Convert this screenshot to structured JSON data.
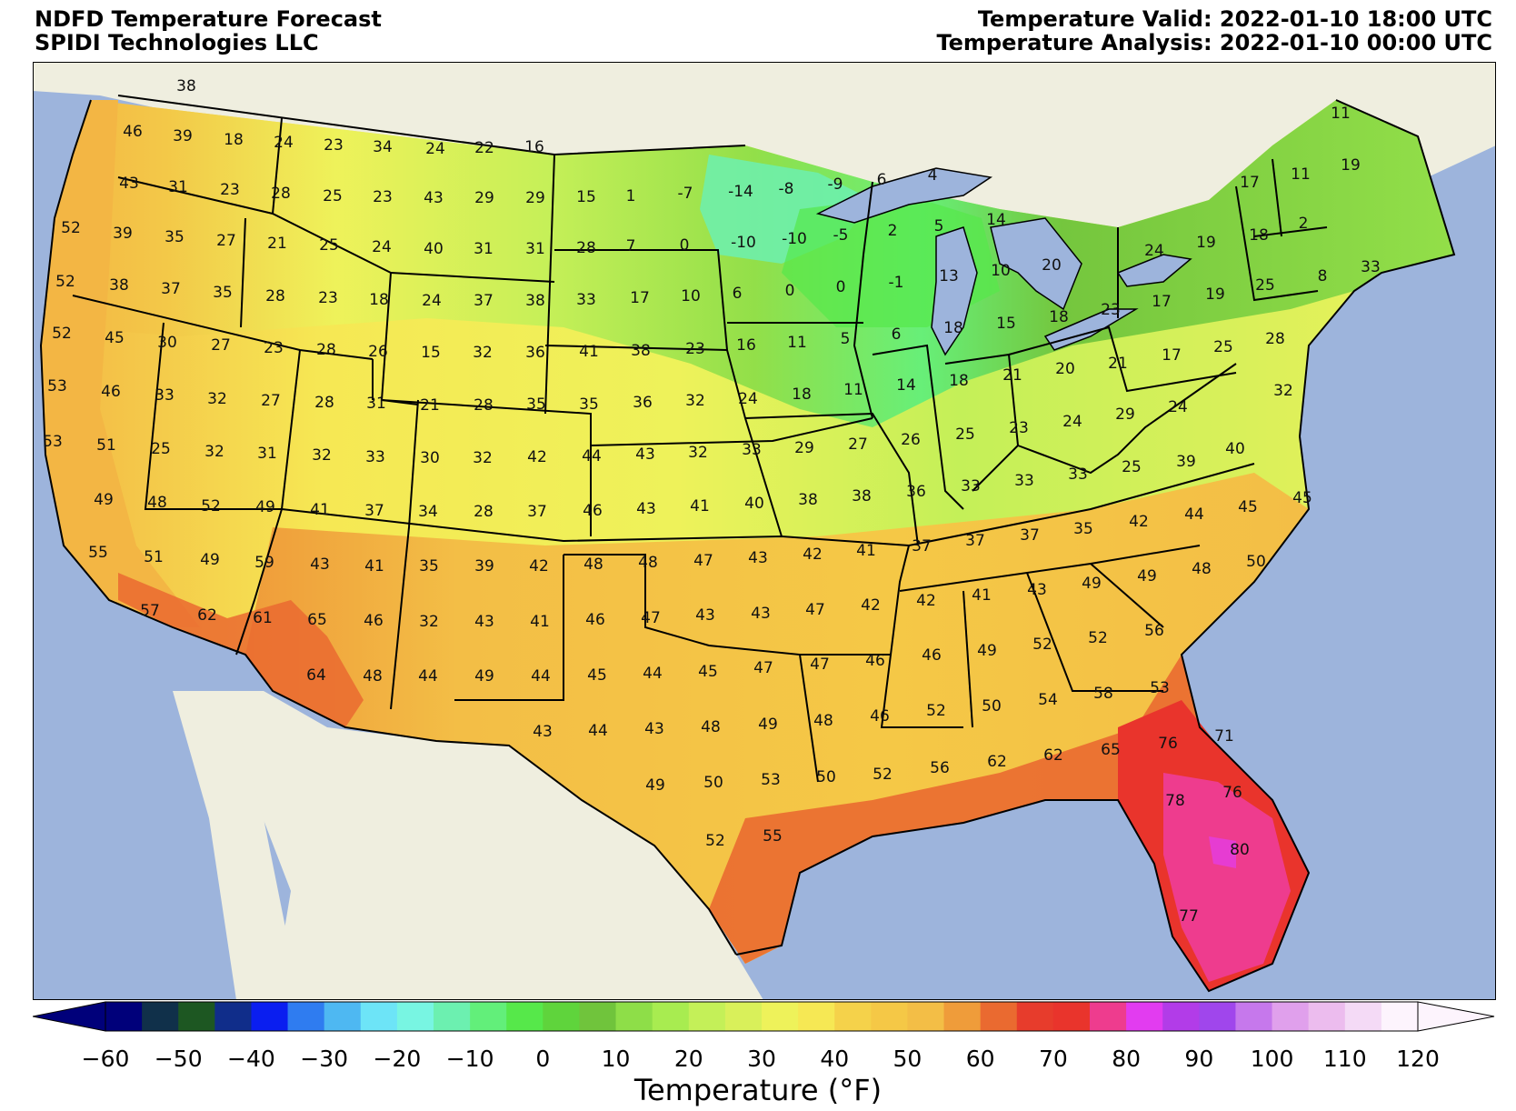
{
  "header": {
    "title_line1": "NDFD Temperature Forecast",
    "title_line2": "SPIDI Technologies LLC",
    "valid": "Temperature Valid: 2022-01-10 18:00 UTC",
    "analysis": "Temperature Analysis: 2022-01-10 00:00 UTC"
  },
  "colors": {
    "ocean": "#9db4dc",
    "land": "#efeedf",
    "border": "#000000"
  },
  "colorbar": {
    "label": "Temperature (°F)",
    "min": -60,
    "max": 120,
    "step": 5,
    "ticks": [
      "−60",
      "−50",
      "−40",
      "−30",
      "−20",
      "−10",
      "0",
      "10",
      "20",
      "30",
      "40",
      "50",
      "60",
      "70",
      "80",
      "90",
      "100",
      "110",
      "120"
    ],
    "colors": [
      "#00007a",
      "#10304a",
      "#1d5722",
      "#102d8a",
      "#0a1ef0",
      "#2f7cf0",
      "#4eb8f2",
      "#6de4f7",
      "#78f5e2",
      "#6cf0b0",
      "#62ef7a",
      "#56e84a",
      "#5fd43c",
      "#70c43c",
      "#8ede48",
      "#a8ec50",
      "#c4f058",
      "#d9f05a",
      "#eef25a",
      "#f6e854",
      "#f5d24a",
      "#f5c846",
      "#f3be46",
      "#ef9c3a",
      "#ea6a30",
      "#e73c2c",
      "#e9342c",
      "#ee3c8e",
      "#e23cf0",
      "#b23ce8",
      "#a046ec",
      "#c678ec",
      "#e0a0ec",
      "#ecbcee",
      "#f4daf6",
      "#fdf4fd"
    ]
  },
  "stations": [
    [
      "38",
      205,
      95
    ],
    [
      "46",
      146,
      145
    ],
    [
      "39",
      201,
      150
    ],
    [
      "18",
      257,
      154
    ],
    [
      "24",
      312,
      157
    ],
    [
      "23",
      367,
      160
    ],
    [
      "34",
      421,
      162
    ],
    [
      "24",
      479,
      164
    ],
    [
      "22",
      533,
      163
    ],
    [
      "16",
      588,
      162
    ],
    [
      "43",
      142,
      202
    ],
    [
      "31",
      196,
      206
    ],
    [
      "23",
      253,
      209
    ],
    [
      "28",
      309,
      213
    ],
    [
      "25",
      366,
      216
    ],
    [
      "23",
      421,
      217
    ],
    [
      "43",
      477,
      218
    ],
    [
      "29",
      533,
      218
    ],
    [
      "29",
      589,
      218
    ],
    [
      "15",
      645,
      217
    ],
    [
      "1",
      694,
      216
    ],
    [
      "-7",
      754,
      213
    ],
    [
      "-14",
      815,
      211
    ],
    [
      "-8",
      865,
      208
    ],
    [
      "-9",
      919,
      203
    ],
    [
      "6",
      970,
      198
    ],
    [
      "4",
      1026,
      193
    ],
    [
      "11",
      1475,
      125
    ],
    [
      "11",
      1431,
      192
    ],
    [
      "19",
      1486,
      182
    ],
    [
      "17",
      1375,
      201
    ],
    [
      "52",
      78,
      251
    ],
    [
      "39",
      135,
      257
    ],
    [
      "35",
      192,
      261
    ],
    [
      "27",
      249,
      265
    ],
    [
      "21",
      305,
      268
    ],
    [
      "25",
      362,
      270
    ],
    [
      "24",
      420,
      272
    ],
    [
      "40",
      477,
      274
    ],
    [
      "31",
      532,
      274
    ],
    [
      "31",
      589,
      274
    ],
    [
      "28",
      645,
      273
    ],
    [
      "7",
      694,
      271
    ],
    [
      "0",
      753,
      270
    ],
    [
      "-10",
      818,
      267
    ],
    [
      "-10",
      874,
      263
    ],
    [
      "-5",
      925,
      259
    ],
    [
      "2",
      982,
      254
    ],
    [
      "5",
      1033,
      249
    ],
    [
      "14",
      1096,
      242
    ],
    [
      "2",
      1434,
      246
    ],
    [
      "24",
      1270,
      276
    ],
    [
      "19",
      1327,
      267
    ],
    [
      "18",
      1385,
      259
    ],
    [
      "52",
      72,
      310
    ],
    [
      "38",
      131,
      314
    ],
    [
      "37",
      188,
      318
    ],
    [
      "35",
      245,
      322
    ],
    [
      "28",
      303,
      326
    ],
    [
      "23",
      361,
      328
    ],
    [
      "18",
      417,
      330
    ],
    [
      "24",
      475,
      331
    ],
    [
      "37",
      532,
      331
    ],
    [
      "38",
      589,
      331
    ],
    [
      "33",
      645,
      330
    ],
    [
      "17",
      704,
      328
    ],
    [
      "10",
      760,
      326
    ],
    [
      "6",
      811,
      323
    ],
    [
      "0",
      869,
      320
    ],
    [
      "0",
      925,
      316
    ],
    [
      "-1",
      986,
      311
    ],
    [
      "13",
      1044,
      304
    ],
    [
      "10",
      1101,
      298
    ],
    [
      "20",
      1157,
      292
    ],
    [
      "25",
      1392,
      314
    ],
    [
      "8",
      1455,
      304
    ],
    [
      "33",
      1508,
      294
    ],
    [
      "52",
      68,
      367
    ],
    [
      "45",
      126,
      372
    ],
    [
      "30",
      184,
      377
    ],
    [
      "27",
      243,
      380
    ],
    [
      "23",
      301,
      383
    ],
    [
      "28",
      359,
      385
    ],
    [
      "26",
      416,
      387
    ],
    [
      "15",
      474,
      388
    ],
    [
      "32",
      531,
      388
    ],
    [
      "36",
      589,
      388
    ],
    [
      "41",
      648,
      387
    ],
    [
      "38",
      705,
      386
    ],
    [
      "23",
      765,
      384
    ],
    [
      "16",
      821,
      380
    ],
    [
      "11",
      877,
      377
    ],
    [
      "5",
      930,
      373
    ],
    [
      "6",
      986,
      368
    ],
    [
      "18",
      1049,
      361
    ],
    [
      "15",
      1107,
      356
    ],
    [
      "18",
      1165,
      349
    ],
    [
      "23",
      1222,
      341
    ],
    [
      "17",
      1278,
      332
    ],
    [
      "19",
      1337,
      324
    ],
    [
      "53",
      63,
      425
    ],
    [
      "46",
      122,
      431
    ],
    [
      "33",
      181,
      435
    ],
    [
      "32",
      239,
      439
    ],
    [
      "27",
      298,
      441
    ],
    [
      "28",
      357,
      443
    ],
    [
      "31",
      414,
      444
    ],
    [
      "21",
      473,
      446
    ],
    [
      "28",
      532,
      446
    ],
    [
      "35",
      590,
      445
    ],
    [
      "35",
      648,
      445
    ],
    [
      "36",
      707,
      443
    ],
    [
      "32",
      765,
      441
    ],
    [
      "24",
      823,
      439
    ],
    [
      "18",
      882,
      434
    ],
    [
      "11",
      939,
      429
    ],
    [
      "14",
      997,
      424
    ],
    [
      "18",
      1055,
      419
    ],
    [
      "21",
      1114,
      413
    ],
    [
      "20",
      1172,
      406
    ],
    [
      "21",
      1230,
      400
    ],
    [
      "17",
      1289,
      391
    ],
    [
      "25",
      1346,
      382
    ],
    [
      "28",
      1403,
      373
    ],
    [
      "32",
      1412,
      430
    ],
    [
      "53",
      58,
      486
    ],
    [
      "51",
      117,
      490
    ],
    [
      "25",
      177,
      494
    ],
    [
      "32",
      236,
      497
    ],
    [
      "31",
      294,
      499
    ],
    [
      "32",
      354,
      501
    ],
    [
      "33",
      413,
      503
    ],
    [
      "30",
      473,
      504
    ],
    [
      "32",
      531,
      504
    ],
    [
      "42",
      591,
      503
    ],
    [
      "44",
      651,
      502
    ],
    [
      "43",
      710,
      500
    ],
    [
      "32",
      768,
      498
    ],
    [
      "33",
      827,
      495
    ],
    [
      "29",
      885,
      493
    ],
    [
      "27",
      944,
      489
    ],
    [
      "26",
      1002,
      484
    ],
    [
      "25",
      1062,
      478
    ],
    [
      "23",
      1121,
      471
    ],
    [
      "24",
      1180,
      464
    ],
    [
      "29",
      1238,
      456
    ],
    [
      "24",
      1296,
      448
    ],
    [
      "40",
      1359,
      494
    ],
    [
      "49",
      114,
      550
    ],
    [
      "48",
      173,
      553
    ],
    [
      "52",
      232,
      557
    ],
    [
      "49",
      292,
      558
    ],
    [
      "41",
      352,
      561
    ],
    [
      "37",
      412,
      562
    ],
    [
      "34",
      471,
      563
    ],
    [
      "28",
      532,
      563
    ],
    [
      "37",
      591,
      563
    ],
    [
      "46",
      652,
      562
    ],
    [
      "43",
      711,
      560
    ],
    [
      "41",
      770,
      557
    ],
    [
      "40",
      830,
      554
    ],
    [
      "38",
      889,
      550
    ],
    [
      "38",
      948,
      546
    ],
    [
      "36",
      1008,
      541
    ],
    [
      "33",
      1068,
      535
    ],
    [
      "33",
      1127,
      529
    ],
    [
      "33",
      1186,
      522
    ],
    [
      "25",
      1245,
      514
    ],
    [
      "39",
      1305,
      508
    ],
    [
      "45",
      1433,
      548
    ],
    [
      "45",
      1373,
      558
    ],
    [
      "55",
      108,
      608
    ],
    [
      "51",
      169,
      613
    ],
    [
      "49",
      231,
      616
    ],
    [
      "59",
      291,
      619
    ],
    [
      "43",
      352,
      621
    ],
    [
      "41",
      412,
      623
    ],
    [
      "35",
      472,
      623
    ],
    [
      "39",
      533,
      623
    ],
    [
      "42",
      593,
      623
    ],
    [
      "48",
      653,
      621
    ],
    [
      "48",
      713,
      619
    ],
    [
      "47",
      774,
      617
    ],
    [
      "43",
      834,
      614
    ],
    [
      "42",
      894,
      610
    ],
    [
      "41",
      953,
      606
    ],
    [
      "37",
      1014,
      601
    ],
    [
      "37",
      1073,
      595
    ],
    [
      "37",
      1133,
      589
    ],
    [
      "35",
      1192,
      582
    ],
    [
      "42",
      1253,
      574
    ],
    [
      "44",
      1314,
      566
    ],
    [
      "50",
      1382,
      618
    ],
    [
      "48",
      1322,
      626
    ],
    [
      "57",
      165,
      672
    ],
    [
      "62",
      228,
      677
    ],
    [
      "61",
      289,
      680
    ],
    [
      "65",
      349,
      682
    ],
    [
      "46",
      411,
      683
    ],
    [
      "32",
      472,
      684
    ],
    [
      "43",
      533,
      684
    ],
    [
      "41",
      594,
      684
    ],
    [
      "46",
      655,
      682
    ],
    [
      "47",
      716,
      680
    ],
    [
      "43",
      776,
      677
    ],
    [
      "43",
      837,
      675
    ],
    [
      "47",
      897,
      671
    ],
    [
      "42",
      958,
      666
    ],
    [
      "42",
      1019,
      661
    ],
    [
      "41",
      1080,
      655
    ],
    [
      "43",
      1141,
      649
    ],
    [
      "49",
      1201,
      642
    ],
    [
      "49",
      1262,
      634
    ],
    [
      "56",
      1270,
      694
    ],
    [
      "64",
      348,
      743
    ],
    [
      "48",
      410,
      744
    ],
    [
      "44",
      471,
      744
    ],
    [
      "49",
      533,
      744
    ],
    [
      "44",
      595,
      744
    ],
    [
      "45",
      657,
      743
    ],
    [
      "44",
      718,
      741
    ],
    [
      "45",
      779,
      739
    ],
    [
      "47",
      840,
      735
    ],
    [
      "47",
      902,
      731
    ],
    [
      "46",
      963,
      727
    ],
    [
      "46",
      1025,
      721
    ],
    [
      "49",
      1086,
      716
    ],
    [
      "52",
      1147,
      709
    ],
    [
      "52",
      1208,
      702
    ],
    [
      "53",
      1276,
      757
    ],
    [
      "43",
      597,
      805
    ],
    [
      "44",
      658,
      804
    ],
    [
      "43",
      720,
      802
    ],
    [
      "48",
      782,
      800
    ],
    [
      "49",
      845,
      797
    ],
    [
      "48",
      906,
      793
    ],
    [
      "46",
      968,
      788
    ],
    [
      "52",
      1030,
      782
    ],
    [
      "50",
      1091,
      777
    ],
    [
      "54",
      1153,
      770
    ],
    [
      "58",
      1214,
      763
    ],
    [
      "71",
      1347,
      810
    ],
    [
      "76",
      1285,
      818
    ],
    [
      "49",
      721,
      864
    ],
    [
      "50",
      785,
      861
    ],
    [
      "53",
      848,
      858
    ],
    [
      "50",
      909,
      855
    ],
    [
      "52",
      971,
      852
    ],
    [
      "56",
      1034,
      845
    ],
    [
      "62",
      1097,
      838
    ],
    [
      "62",
      1159,
      831
    ],
    [
      "65",
      1222,
      825
    ],
    [
      "78",
      1293,
      881
    ],
    [
      "76",
      1356,
      872
    ],
    [
      "52",
      787,
      925
    ],
    [
      "55",
      850,
      920
    ],
    [
      "80",
      1364,
      935
    ],
    [
      "77",
      1308,
      1008
    ]
  ]
}
